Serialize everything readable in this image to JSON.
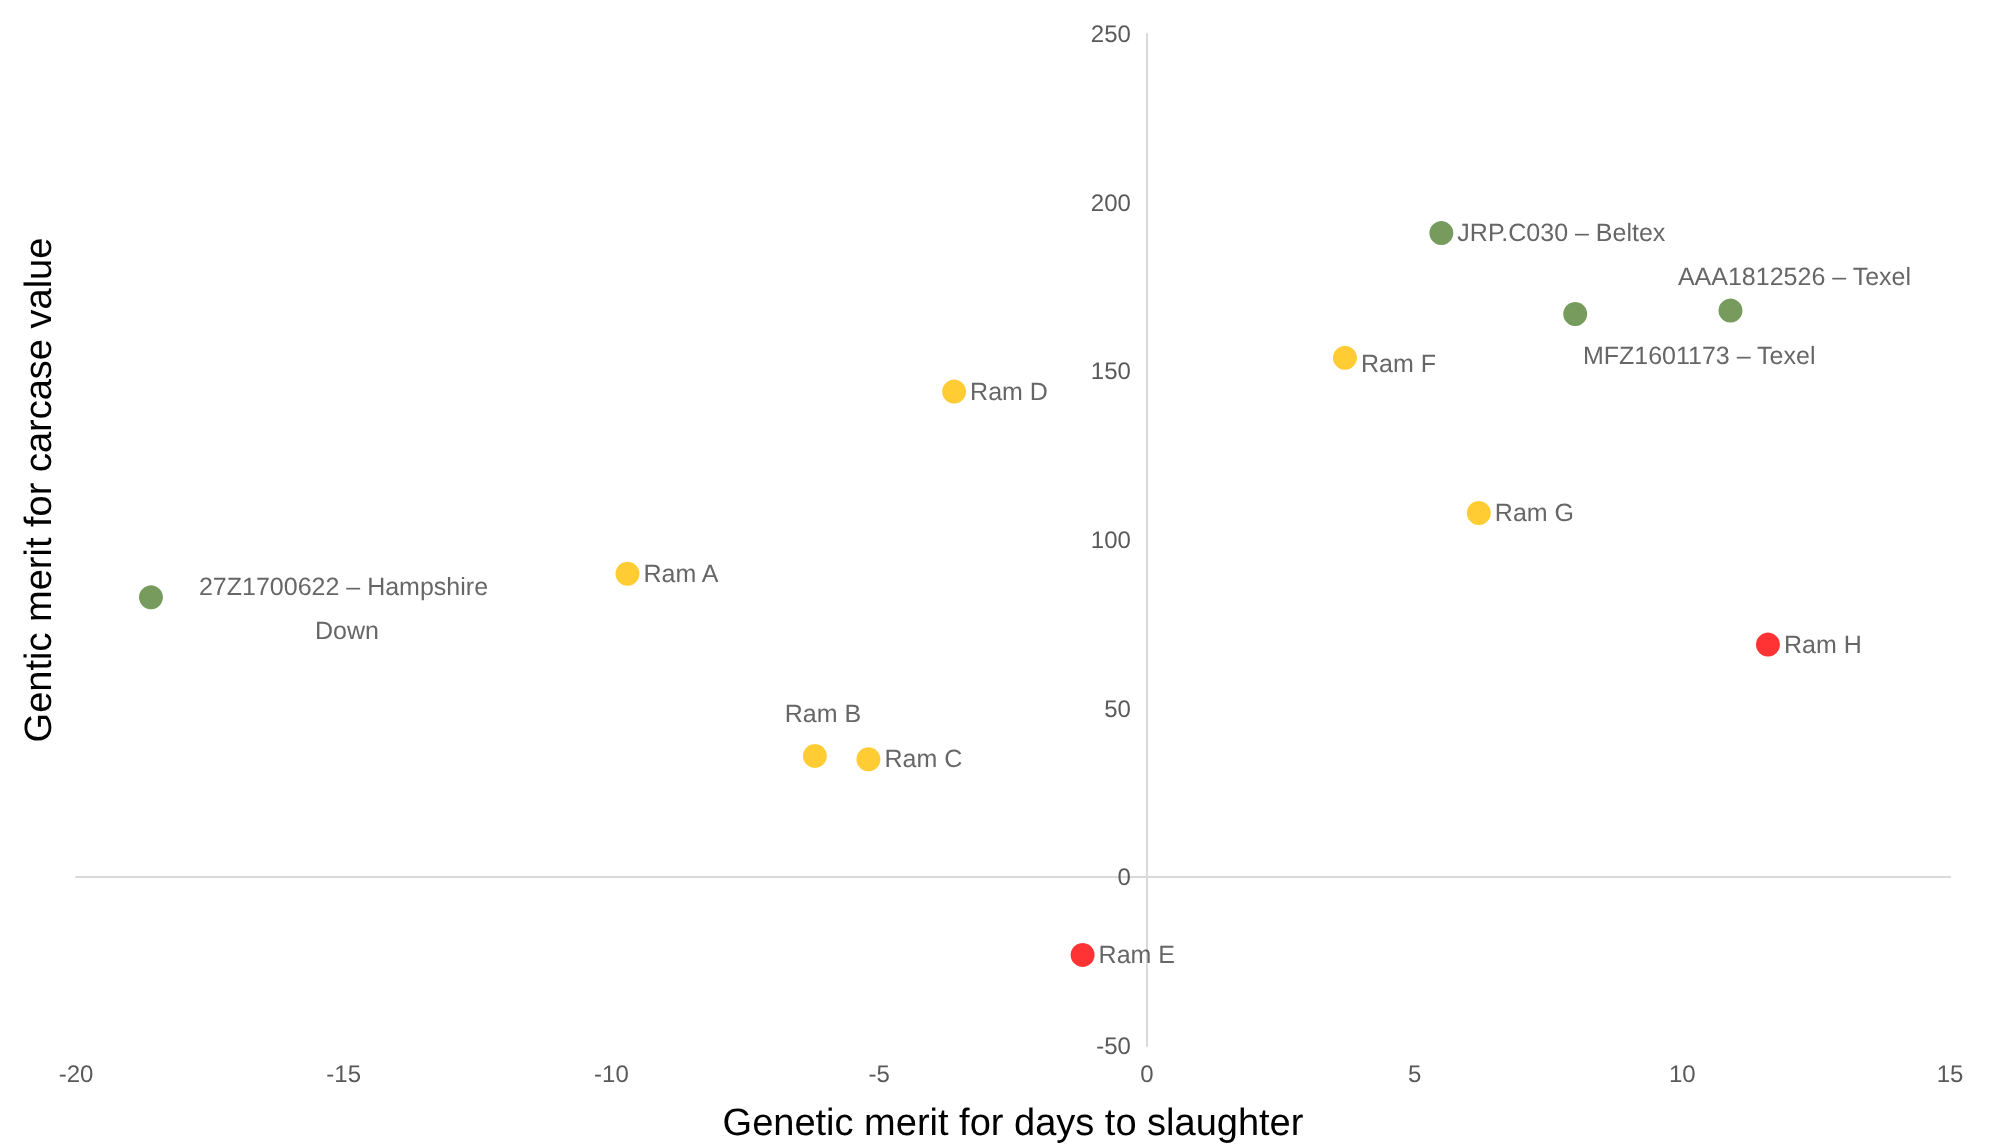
{
  "chart_data": {
    "type": "scatter",
    "xlabel": "Genetic merit for days to slaughter",
    "ylabel": "Gentic merit for carcase value",
    "x": [
      -18.6,
      -9.7,
      -6.2,
      -5.2,
      -3.6,
      -1.2,
      3.7,
      6.2,
      11.6,
      5.5,
      8,
      10.9
    ],
    "values": [
      83,
      90,
      36,
      35,
      144,
      -23,
      154,
      108,
      69,
      191,
      167,
      168
    ],
    "colors": [
      "#548235",
      "#ffc000",
      "#ffc000",
      "#ffc000",
      "#ffc000",
      "#ff0000",
      "#ffc000",
      "#ffc000",
      "#ff0000",
      "#548235",
      "#548235",
      "#548235"
    ],
    "annotations": [
      {
        "text": "27Z1700622 – Hampshire Down",
        "x": -18.6,
        "y": 83
      },
      {
        "text": "Ram A",
        "x": -9.7,
        "y": 90
      },
      {
        "text": "Ram B",
        "x": -6.2,
        "y": 36
      },
      {
        "text": "Ram C",
        "x": -5.2,
        "y": 35
      },
      {
        "text": "Ram D",
        "x": -3.6,
        "y": 144
      },
      {
        "text": "Ram E",
        "x": -1.2,
        "y": -23
      },
      {
        "text": "Ram F",
        "x": 3.7,
        "y": 154
      },
      {
        "text": "Ram G",
        "x": 6.2,
        "y": 108
      },
      {
        "text": "Ram H",
        "x": 11.6,
        "y": 69
      },
      {
        "text": "JRP.C030 – Beltex",
        "x": 5.5,
        "y": 191
      },
      {
        "text": "MFZ1601173 – Texel",
        "x": 8,
        "y": 167
      },
      {
        "text": "AAA1812526 – Texel",
        "x": 10.9,
        "y": 168
      }
    ],
    "xlim": [
      -20,
      15
    ],
    "xticks": [
      -20,
      -15,
      -10,
      -5,
      0,
      5,
      10,
      15
    ],
    "ylim": [
      -50,
      250
    ],
    "yticks": [
      -50,
      0,
      50,
      100,
      150,
      200,
      250
    ],
    "marker": "circle"
  }
}
